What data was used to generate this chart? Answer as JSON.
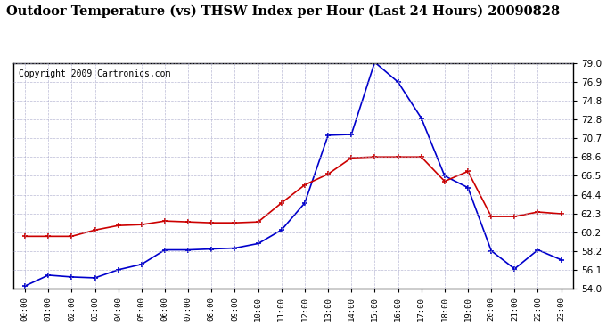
{
  "title": "Outdoor Temperature (vs) THSW Index per Hour (Last 24 Hours) 20090828",
  "copyright": "Copyright 2009 Cartronics.com",
  "x_labels": [
    "00:00",
    "01:00",
    "02:00",
    "03:00",
    "04:00",
    "05:00",
    "06:00",
    "07:00",
    "08:00",
    "09:00",
    "10:00",
    "11:00",
    "12:00",
    "13:00",
    "14:00",
    "15:00",
    "16:00",
    "17:00",
    "18:00",
    "19:00",
    "20:00",
    "21:00",
    "22:00",
    "23:00"
  ],
  "temp_data": [
    54.3,
    55.5,
    55.3,
    55.2,
    56.1,
    56.7,
    58.3,
    58.3,
    58.4,
    58.5,
    59.0,
    60.5,
    63.5,
    71.0,
    71.1,
    79.1,
    76.9,
    72.9,
    66.5,
    65.2,
    58.2,
    56.2,
    58.3,
    57.2
  ],
  "thsw_data": [
    59.8,
    59.8,
    59.8,
    60.5,
    61.0,
    61.1,
    61.5,
    61.4,
    61.3,
    61.3,
    61.4,
    63.5,
    65.5,
    66.7,
    68.5,
    68.6,
    68.6,
    68.6,
    65.9,
    67.0,
    62.0,
    62.0,
    62.5,
    62.3
  ],
  "temp_color": "#0000cc",
  "thsw_color": "#cc0000",
  "bg_color": "#ffffff",
  "grid_color": "#aaaacc",
  "y_min": 54.0,
  "y_max": 79.0,
  "y_ticks": [
    54.0,
    56.1,
    58.2,
    60.2,
    62.3,
    64.4,
    66.5,
    68.6,
    70.7,
    72.8,
    74.8,
    76.9,
    79.0
  ],
  "title_fontsize": 10.5,
  "copyright_fontsize": 7.0
}
